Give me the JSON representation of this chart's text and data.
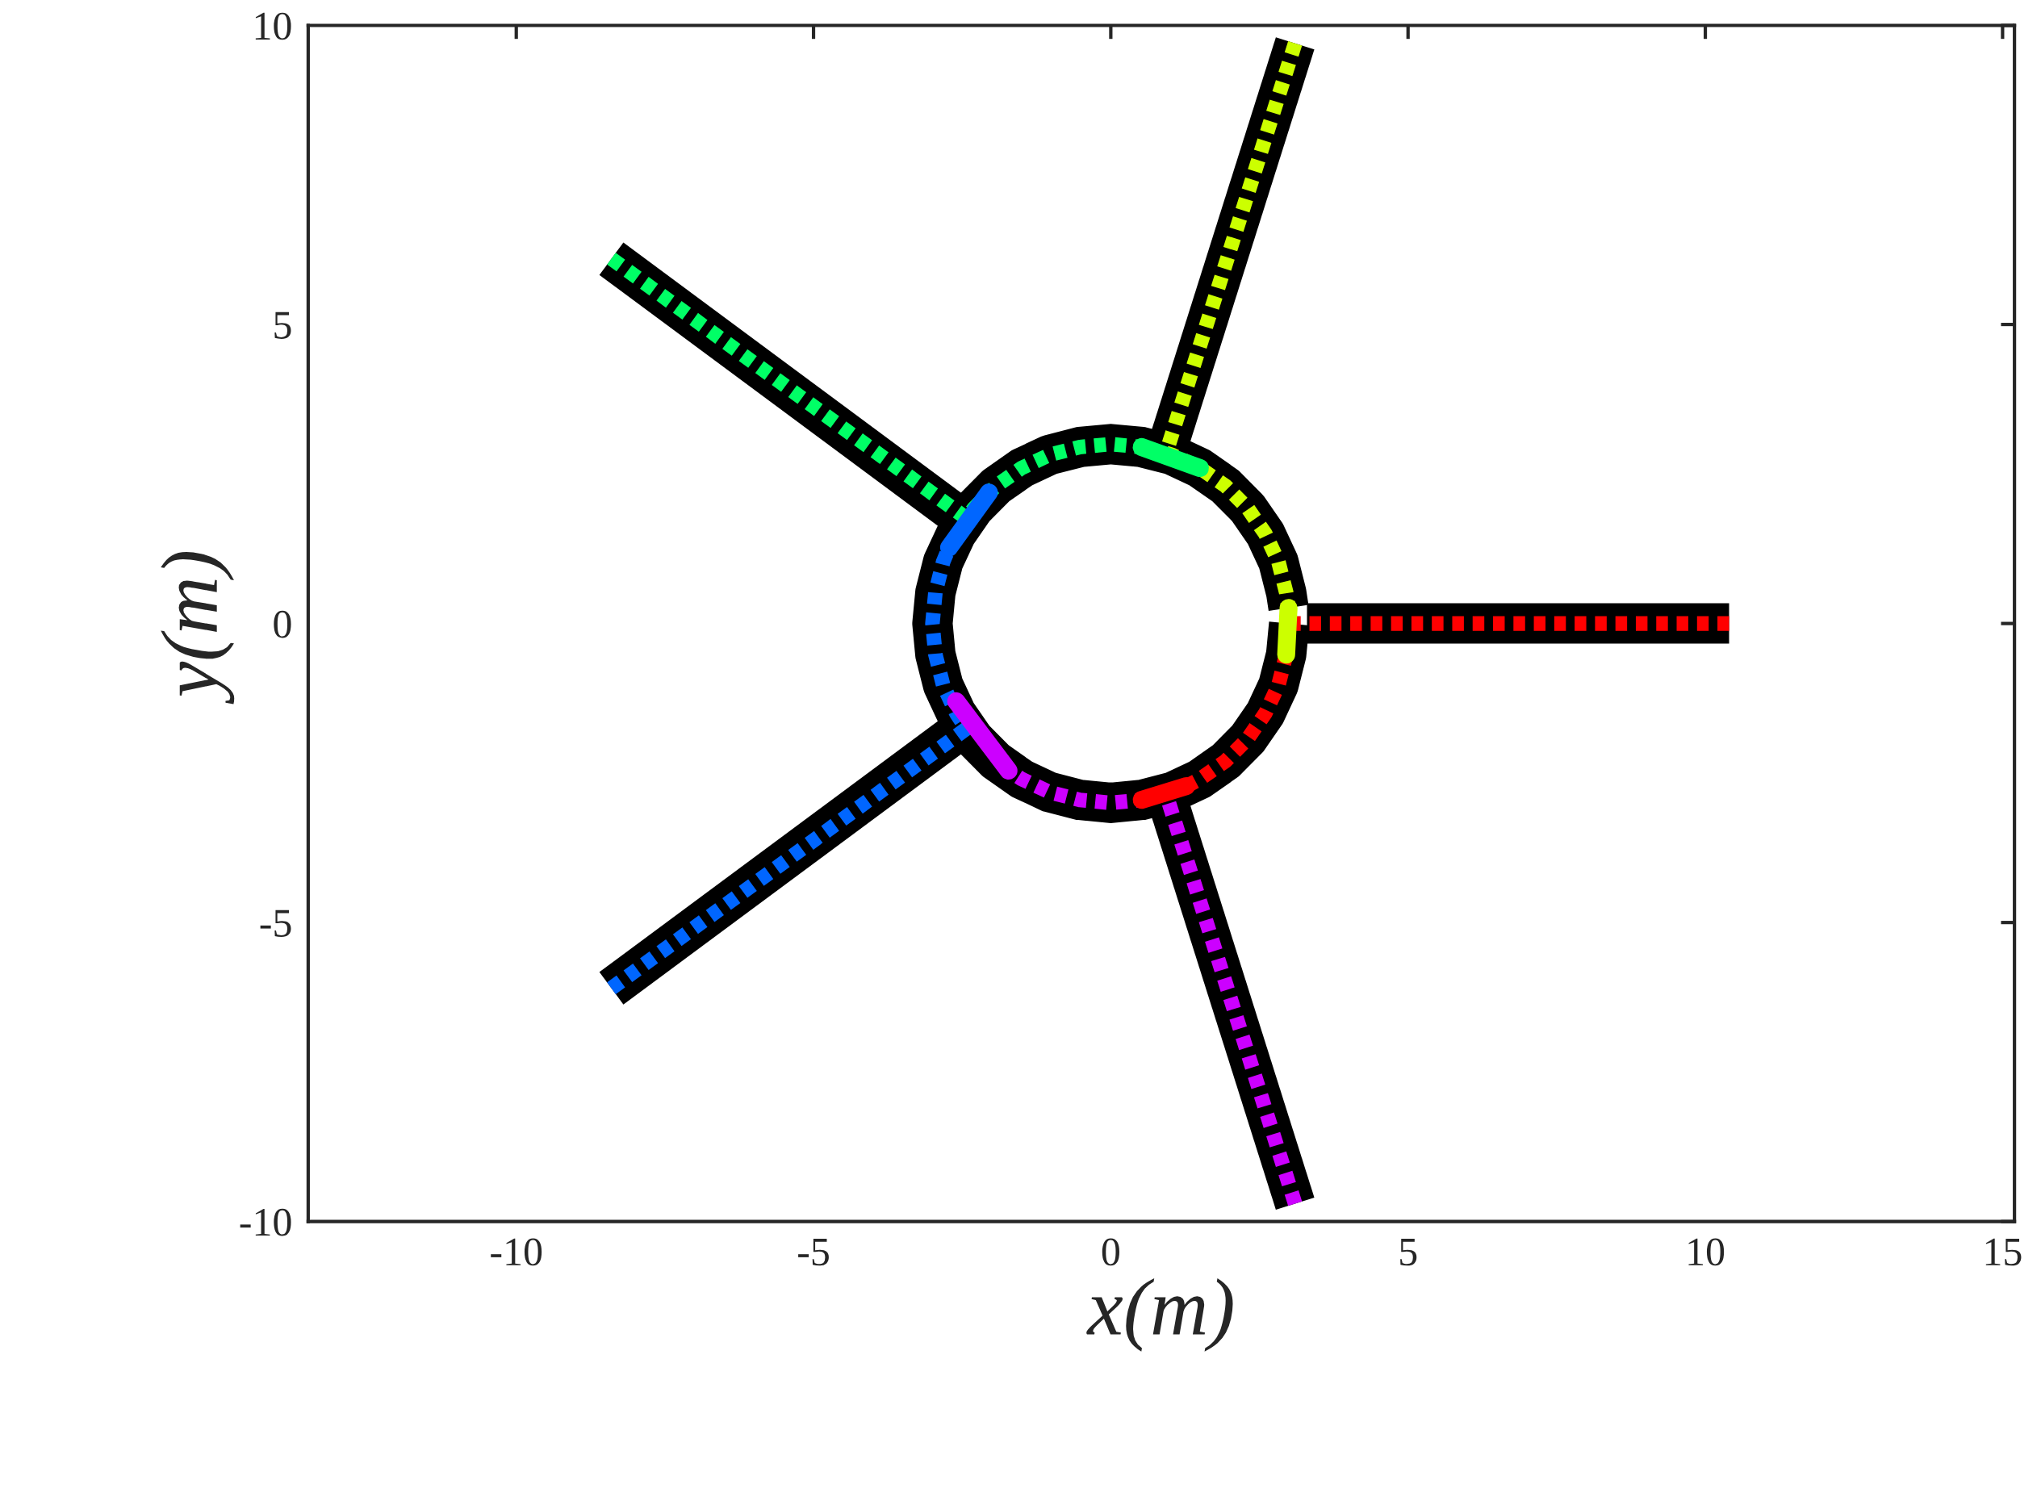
{
  "chart_data": {
    "type": "line",
    "xlabel": "x(m)",
    "ylabel": "y(m)",
    "xlim": [
      -13.5,
      15.2
    ],
    "ylim": [
      -10,
      10
    ],
    "xticks": [
      -10,
      -5,
      0,
      5,
      10,
      15
    ],
    "yticks": [
      -10,
      -5,
      0,
      5,
      10
    ],
    "grid": false,
    "legend": false,
    "marker": "none",
    "series": [
      {
        "color": "#000000",
        "line_style": "solid",
        "x": [
          3.3,
          10.4
        ],
        "values": [
          0,
          0
        ]
      },
      {
        "color": "#000000",
        "line_style": "solid",
        "x": [
          1.0,
          3.1
        ],
        "values": [
          3.1,
          9.7
        ]
      },
      {
        "color": "#000000",
        "line_style": "solid",
        "x": [
          -2.7,
          -8.4
        ],
        "values": [
          1.9,
          6.1
        ]
      },
      {
        "color": "#000000",
        "line_style": "solid",
        "x": [
          -2.7,
          -8.4
        ],
        "values": [
          -1.9,
          -6.1
        ]
      },
      {
        "color": "#000000",
        "line_style": "solid",
        "x": [
          1.0,
          3.1
        ],
        "values": [
          -3.1,
          -9.7
        ]
      },
      {
        "color": "#000000",
        "line_style": "solid",
        "x": [
          3.0,
          2.95,
          2.82,
          2.6,
          2.3,
          1.93,
          1.5,
          1.03,
          0.52,
          0,
          -0.52,
          -1.03,
          -1.5,
          -1.93,
          -2.3,
          -2.6,
          -2.82,
          -2.95,
          -3.0,
          -2.95,
          -2.82,
          -2.6,
          -2.3,
          -1.93,
          -1.5,
          -1.03,
          -0.52,
          0,
          0.52,
          1.03,
          1.5,
          1.93,
          2.3,
          2.6,
          2.82,
          2.95,
          2.99
        ],
        "values": [
          0,
          -0.52,
          -1.03,
          -1.5,
          -1.93,
          -2.3,
          -2.6,
          -2.82,
          -2.95,
          -3.0,
          -2.95,
          -2.82,
          -2.6,
          -2.3,
          -1.93,
          -1.5,
          -1.03,
          -0.52,
          0,
          0.52,
          1.03,
          1.5,
          1.93,
          2.3,
          2.6,
          2.82,
          2.95,
          3.0,
          2.95,
          2.82,
          2.6,
          2.3,
          1.93,
          1.5,
          1.03,
          0.52,
          0.26
        ]
      },
      {
        "color": "#ff0000",
        "line_style": "dashed",
        "x": [
          10.4,
          3.0,
          2.95,
          2.82,
          2.6,
          2.3,
          1.93,
          1.5,
          1.27
        ],
        "values": [
          0,
          0,
          -0.52,
          -1.03,
          -1.5,
          -1.93,
          -2.3,
          -2.6,
          -2.72
        ]
      },
      {
        "color": "#ccff00",
        "line_style": "dashed",
        "x": [
          3.1,
          0.93,
          1.03,
          1.5,
          1.93,
          2.3,
          2.6,
          2.82,
          2.95,
          2.99
        ],
        "values": [
          9.7,
          2.85,
          2.82,
          2.6,
          2.3,
          1.93,
          1.5,
          1.03,
          0.52,
          0.26
        ]
      },
      {
        "color": "#00ff66",
        "line_style": "dashed",
        "x": [
          -8.4,
          -2.43,
          -2.3,
          -1.93,
          -1.5,
          -1.03,
          -0.52,
          0,
          0.52
        ],
        "values": [
          6.1,
          1.76,
          1.93,
          2.3,
          2.6,
          2.82,
          2.95,
          3.0,
          2.95
        ]
      },
      {
        "color": "#0066ff",
        "line_style": "dashed",
        "x": [
          -8.4,
          -2.43,
          -2.6,
          -2.82,
          -2.95,
          -3.0,
          -2.95,
          -2.82,
          -2.72
        ],
        "values": [
          -6.1,
          -1.76,
          -1.5,
          -1.03,
          -0.52,
          0,
          0.52,
          1.03,
          1.27
        ]
      },
      {
        "color": "#cc00ff",
        "line_style": "dashed",
        "x": [
          3.1,
          0.93,
          0.52,
          0,
          -0.52,
          -1.03,
          -1.5,
          -1.72
        ],
        "values": [
          -9.7,
          -2.85,
          -2.95,
          -3.0,
          -2.95,
          -2.82,
          -2.6,
          -2.46
        ]
      },
      {
        "color": "#ff0000",
        "line_style": "solid",
        "x": [
          1.27,
          0.52
        ],
        "values": [
          -2.72,
          -2.95
        ]
      },
      {
        "color": "#ccff00",
        "line_style": "solid",
        "x": [
          2.99,
          2.95
        ],
        "values": [
          0.26,
          -0.52
        ]
      },
      {
        "color": "#00ff66",
        "line_style": "solid",
        "x": [
          0.52,
          1.5
        ],
        "values": [
          2.95,
          2.6
        ]
      },
      {
        "color": "#0066ff",
        "line_style": "solid",
        "x": [
          -2.72,
          -2.05
        ],
        "values": [
          1.27,
          2.19
        ]
      },
      {
        "color": "#cc00ff",
        "line_style": "solid",
        "x": [
          -1.72,
          -2.6
        ],
        "values": [
          -2.46,
          -1.3
        ]
      }
    ]
  }
}
